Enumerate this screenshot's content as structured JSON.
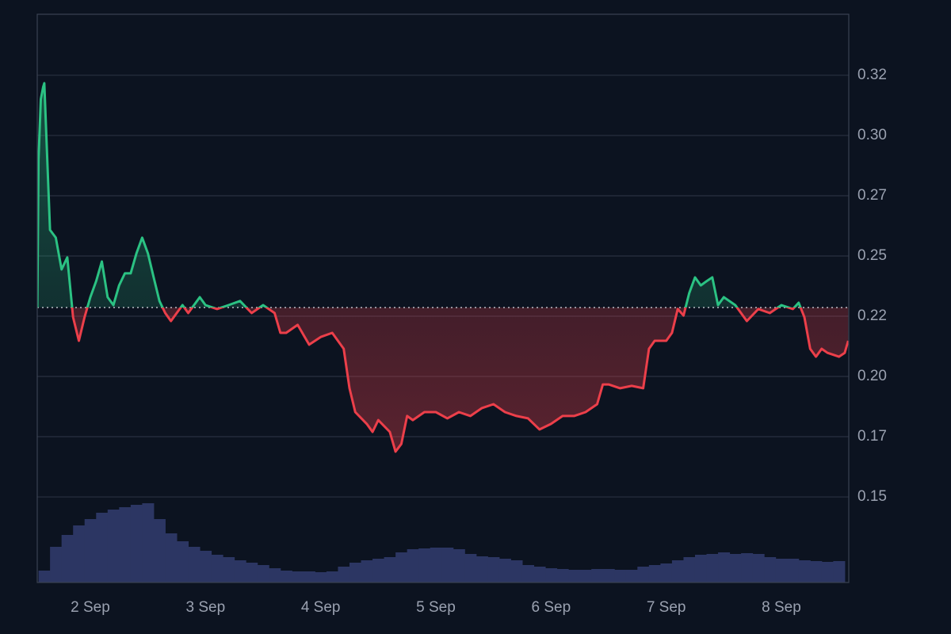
{
  "chart_data": {
    "type": "line",
    "x": [
      1.54,
      1.55,
      1.57,
      1.59,
      1.6,
      1.65,
      1.7,
      1.75,
      1.8,
      1.85,
      1.9,
      1.95,
      2.0,
      2.05,
      2.1,
      2.15,
      2.2,
      2.25,
      2.3,
      2.35,
      2.4,
      2.45,
      2.5,
      2.55,
      2.6,
      2.65,
      2.7,
      2.75,
      2.8,
      2.85,
      2.9,
      2.95,
      3.0,
      3.1,
      3.2,
      3.3,
      3.4,
      3.5,
      3.6,
      3.65,
      3.7,
      3.8,
      3.9,
      4.0,
      4.1,
      4.2,
      4.25,
      4.3,
      4.4,
      4.45,
      4.5,
      4.6,
      4.65,
      4.7,
      4.75,
      4.8,
      4.9,
      5.0,
      5.1,
      5.2,
      5.3,
      5.4,
      5.5,
      5.6,
      5.7,
      5.8,
      5.9,
      6.0,
      6.1,
      6.2,
      6.3,
      6.4,
      6.45,
      6.5,
      6.6,
      6.7,
      6.8,
      6.85,
      6.9,
      7.0,
      7.05,
      7.1,
      7.15,
      7.2,
      7.25,
      7.3,
      7.35,
      7.4,
      7.45,
      7.5,
      7.6,
      7.7,
      7.8,
      7.9,
      8.0,
      8.1,
      8.15,
      8.2,
      8.25,
      8.3,
      8.35,
      8.4,
      8.5,
      8.55,
      8.58
    ],
    "values": [
      0.2286,
      0.29,
      0.315,
      0.32,
      0.3217,
      0.2608,
      0.2576,
      0.2444,
      0.2494,
      0.2246,
      0.2148,
      0.2246,
      0.2329,
      0.2395,
      0.2477,
      0.2329,
      0.2296,
      0.2378,
      0.2428,
      0.2428,
      0.251,
      0.2576,
      0.251,
      0.2411,
      0.2313,
      0.2263,
      0.223,
      0.2263,
      0.2296,
      0.2263,
      0.2296,
      0.2329,
      0.2296,
      0.228,
      0.2296,
      0.2313,
      0.2263,
      0.2296,
      0.2263,
      0.2181,
      0.2181,
      0.2214,
      0.2132,
      0.2164,
      0.2181,
      0.2115,
      0.1951,
      0.1852,
      0.1803,
      0.177,
      0.1819,
      0.177,
      0.1688,
      0.172,
      0.1836,
      0.1819,
      0.1852,
      0.1852,
      0.1826,
      0.1852,
      0.1836,
      0.1869,
      0.1885,
      0.1852,
      0.1836,
      0.1826,
      0.178,
      0.1803,
      0.1836,
      0.1836,
      0.1852,
      0.1885,
      0.1967,
      0.1967,
      0.1951,
      0.1961,
      0.1951,
      0.2115,
      0.2148,
      0.2148,
      0.2181,
      0.228,
      0.2253,
      0.2346,
      0.2411,
      0.2378,
      0.2395,
      0.2411,
      0.2296,
      0.2329,
      0.2296,
      0.223,
      0.228,
      0.2263,
      0.2296,
      0.228,
      0.2306,
      0.2246,
      0.2115,
      0.2082,
      0.2115,
      0.2098,
      0.2082,
      0.2098,
      0.2148
    ],
    "baseline": 0.2286,
    "up_color": "#2bc283",
    "down_color": "#ec3f4a",
    "xlim": [
      1.539,
      8.585
    ],
    "xticks": [
      {
        "value": 2,
        "label": "2 Sep"
      },
      {
        "value": 3,
        "label": "3 Sep"
      },
      {
        "value": 4,
        "label": "4 Sep"
      },
      {
        "value": 5,
        "label": "5 Sep"
      },
      {
        "value": 6,
        "label": "6 Sep"
      },
      {
        "value": 7,
        "label": "7 Sep"
      },
      {
        "value": 8,
        "label": "8 Sep"
      }
    ],
    "ylim": [
      0.1145,
      0.3503
    ],
    "yticks": [
      {
        "value": 0.325,
        "label": "0.32"
      },
      {
        "value": 0.3,
        "label": "0.30"
      },
      {
        "value": 0.275,
        "label": "0.27"
      },
      {
        "value": 0.25,
        "label": "0.25"
      },
      {
        "value": 0.225,
        "label": "0.22"
      },
      {
        "value": 0.2,
        "label": "0.20"
      },
      {
        "value": 0.175,
        "label": "0.17"
      },
      {
        "value": 0.15,
        "label": "0.15"
      }
    ],
    "grid": true,
    "volume": {
      "color": "#2c3663",
      "lim": [
        0,
        110
      ],
      "x": [
        1.6,
        1.7,
        1.8,
        1.9,
        2.0,
        2.1,
        2.2,
        2.3,
        2.4,
        2.5,
        2.6,
        2.7,
        2.8,
        2.9,
        3.0,
        3.1,
        3.2,
        3.3,
        3.4,
        3.5,
        3.6,
        3.7,
        3.8,
        3.9,
        4.0,
        4.1,
        4.2,
        4.3,
        4.4,
        4.5,
        4.6,
        4.7,
        4.8,
        4.9,
        5.0,
        5.1,
        5.2,
        5.3,
        5.4,
        5.5,
        5.6,
        5.7,
        5.8,
        5.9,
        6.0,
        6.1,
        6.2,
        6.3,
        6.4,
        6.5,
        6.6,
        6.7,
        6.8,
        6.9,
        7.0,
        7.1,
        7.2,
        7.3,
        7.4,
        7.5,
        7.6,
        7.7,
        7.8,
        7.9,
        8.0,
        8.1,
        8.2,
        8.3,
        8.4,
        8.5
      ],
      "values": [
        15,
        45,
        60,
        72,
        80,
        88,
        92,
        95,
        98,
        100,
        80,
        62,
        52,
        45,
        40,
        35,
        32,
        28,
        25,
        22,
        18,
        15,
        14,
        14,
        13,
        14,
        20,
        25,
        28,
        30,
        32,
        38,
        42,
        43,
        44,
        44,
        42,
        36,
        33,
        32,
        30,
        28,
        22,
        20,
        18,
        17,
        16,
        16,
        17,
        17,
        16,
        16,
        20,
        22,
        24,
        28,
        32,
        35,
        36,
        38,
        36,
        37,
        36,
        32,
        30,
        30,
        28,
        27,
        26,
        27
      ]
    }
  }
}
